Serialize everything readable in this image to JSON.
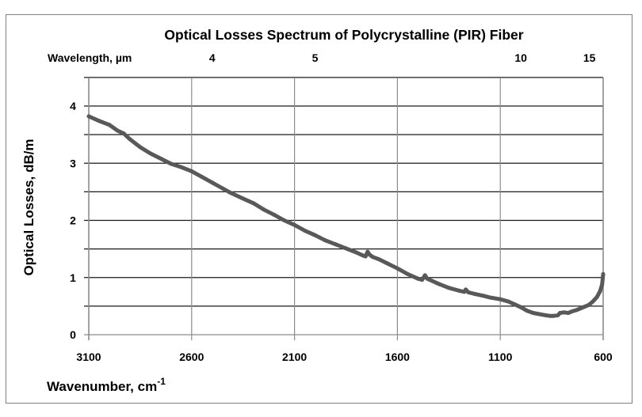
{
  "chart_data": {
    "type": "line",
    "title": "Optical Losses Spectrum of Polycrystalline (PIR) Fiber",
    "xlabel": "Wavenumber,  cm",
    "xlabel_superscript": "-1",
    "ylabel": "Optical   Losses,  dB/m",
    "secondary_xlabel": "Wavelength, µm",
    "xlim": [
      3100,
      600
    ],
    "ylim": [
      0,
      4.5
    ],
    "x_ticks": [
      3100,
      2600,
      2100,
      1600,
      1100,
      600
    ],
    "x_tick_labels": [
      "3100",
      "2600",
      "2100",
      "1600",
      "1100",
      "600"
    ],
    "y_ticks": [
      0,
      1,
      2,
      3,
      4
    ],
    "y_tick_labels": [
      "0",
      "1",
      "2",
      "3",
      "4"
    ],
    "y_gridlines": [
      0.5,
      1,
      1.5,
      2,
      2.5,
      3,
      3.5,
      4,
      4.5
    ],
    "secondary_x_ticks": [
      {
        "label": "4",
        "wavenumber": 2500
      },
      {
        "label": "5",
        "wavenumber": 2000
      },
      {
        "label": "10",
        "wavenumber": 1000
      },
      {
        "label": "15",
        "wavenumber": 667
      }
    ],
    "grid": true,
    "legend": "none",
    "series": [
      {
        "name": "Optical Losses",
        "color": "#595959",
        "x": [
          3100,
          3050,
          3000,
          2960,
          2930,
          2900,
          2850,
          2800,
          2750,
          2700,
          2650,
          2600,
          2550,
          2500,
          2450,
          2415,
          2350,
          2300,
          2250,
          2200,
          2150,
          2100,
          2050,
          2000,
          1950,
          1900,
          1850,
          1800,
          1770,
          1755,
          1745,
          1735,
          1720,
          1690,
          1650,
          1600,
          1550,
          1500,
          1480,
          1466,
          1455,
          1430,
          1400,
          1350,
          1300,
          1275,
          1268,
          1255,
          1220,
          1180,
          1150,
          1100,
          1060,
          1030,
          1000,
          970,
          940,
          910,
          880,
          860,
          840,
          820,
          810,
          790,
          770,
          750,
          730,
          710,
          690,
          670,
          650,
          630,
          615,
          605,
          600
        ],
        "y": [
          3.82,
          3.74,
          3.67,
          3.57,
          3.52,
          3.42,
          3.28,
          3.17,
          3.08,
          2.99,
          2.93,
          2.86,
          2.76,
          2.66,
          2.56,
          2.49,
          2.38,
          2.3,
          2.19,
          2.1,
          2.0,
          1.92,
          1.82,
          1.74,
          1.65,
          1.58,
          1.51,
          1.44,
          1.39,
          1.37,
          1.45,
          1.4,
          1.36,
          1.32,
          1.25,
          1.16,
          1.06,
          0.98,
          0.96,
          1.04,
          0.98,
          0.94,
          0.89,
          0.82,
          0.77,
          0.75,
          0.79,
          0.74,
          0.71,
          0.68,
          0.65,
          0.62,
          0.58,
          0.53,
          0.48,
          0.42,
          0.38,
          0.36,
          0.34,
          0.33,
          0.33,
          0.34,
          0.38,
          0.39,
          0.38,
          0.41,
          0.43,
          0.46,
          0.49,
          0.52,
          0.58,
          0.66,
          0.76,
          0.88,
          1.06
        ]
      }
    ]
  }
}
